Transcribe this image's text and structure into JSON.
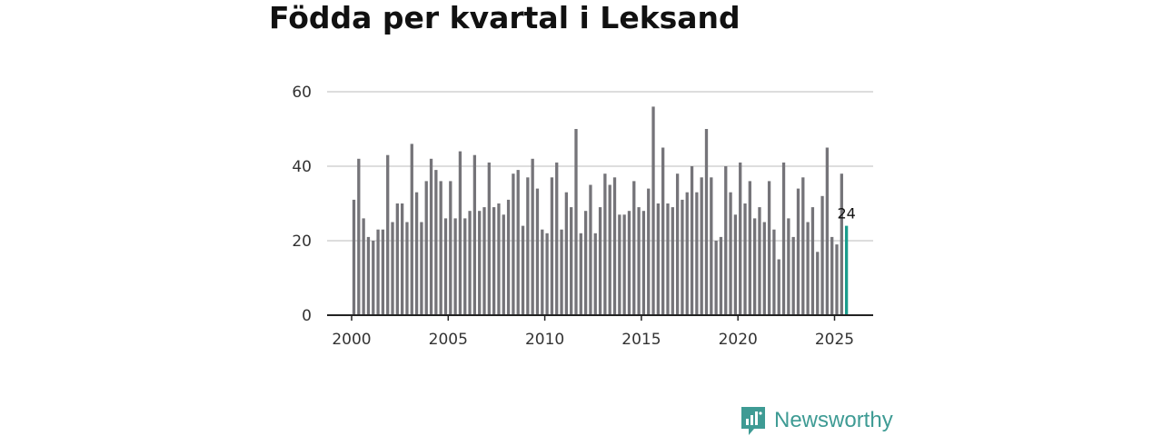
{
  "colors": {
    "bar": "#757479",
    "highlight": "#1a9c8c",
    "grid": "#dddddd",
    "axis": "#222222",
    "brand": "#3e9b94"
  },
  "icons": {
    "logo": "bar-chart-speech-bubble-icon"
  },
  "brand": {
    "name": "Newsworthy"
  },
  "chart_data": {
    "type": "bar",
    "title": "Födda per kvartal i Leksand",
    "xlabel": "",
    "ylabel": "",
    "ylim": [
      0,
      60
    ],
    "yticks": [
      0,
      20,
      40,
      60
    ],
    "xticks": [
      "2000",
      "2005",
      "2010",
      "2015",
      "2020",
      "2025"
    ],
    "grid": true,
    "start_year": 2000,
    "series": [
      {
        "name": "Födda",
        "values": [
          31,
          42,
          26,
          21,
          20,
          23,
          23,
          43,
          25,
          30,
          30,
          25,
          46,
          33,
          25,
          36,
          42,
          39,
          36,
          26,
          36,
          26,
          44,
          26,
          28,
          43,
          28,
          29,
          41,
          29,
          30,
          27,
          31,
          38,
          39,
          24,
          37,
          42,
          34,
          23,
          22,
          37,
          41,
          23,
          33,
          29,
          50,
          22,
          28,
          35,
          22,
          29,
          38,
          35,
          37,
          27,
          27,
          28,
          36,
          29,
          28,
          34,
          56,
          30,
          45,
          30,
          29,
          38,
          31,
          33,
          40,
          33,
          37,
          50,
          37,
          20,
          21,
          40,
          33,
          27,
          41,
          30,
          36,
          26,
          29,
          25,
          36,
          23,
          15,
          41,
          26,
          21,
          34,
          37,
          25,
          29,
          17,
          32,
          45,
          21,
          19,
          38,
          24
        ]
      }
    ],
    "highlight_label": "24"
  }
}
